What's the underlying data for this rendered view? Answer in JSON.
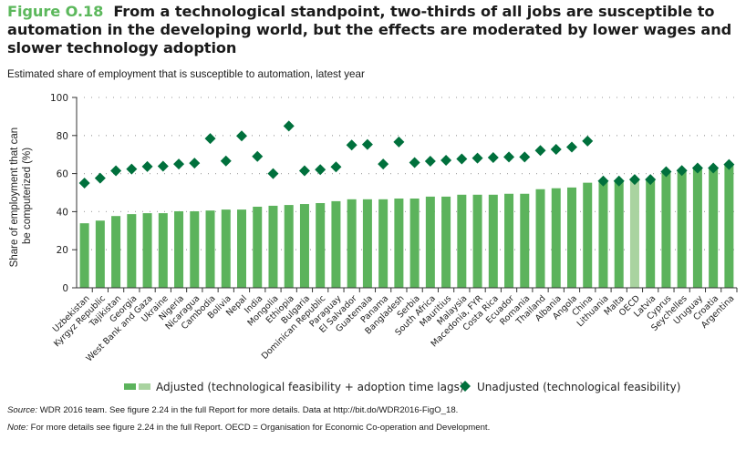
{
  "header": {
    "figure_label": "Figure O.18",
    "title": "From a technological standpoint, two-thirds of all jobs are susceptible to automation in the developing world, but the effects are moderated by lower wages and slower technology adoption",
    "subtitle": "Estimated share of employment that is susceptible to automation, latest year"
  },
  "footer": {
    "source_label": "Source:",
    "source_text": " WDR 2016 team. See figure 2.24 in the full Report for more details. Data at http://bit.do/WDR2016-FigO_18.",
    "note_label": "Note:",
    "note_text": " For more details see figure 2.24 in the full Report. OECD = Organisation for Economic Co-operation and Development."
  },
  "colors": {
    "bar": "#5cb35c",
    "bar_highlight": "#a9d3a0",
    "diamond": "#00703c",
    "figure_label": "#5cb85c"
  },
  "chart_data": {
    "type": "bar",
    "title": "Estimated share of employment that is susceptible to automation, latest year",
    "xlabel": "",
    "ylabel": "Share of employment that can be computerized (%)",
    "ylim": [
      0,
      100
    ],
    "yticks": [
      0,
      20,
      40,
      60,
      80,
      100
    ],
    "grid": "horizontal dotted",
    "legend_position": "bottom",
    "highlight_category": "OECD",
    "categories": [
      "Uzbekistan",
      "Kyrgyz Republic",
      "Tajikistan",
      "Georgia",
      "West Bank and Gaza",
      "Ukraine",
      "Nigeria",
      "Nicaragua",
      "Cambodia",
      "Bolivia",
      "Nepal",
      "India",
      "Mongolia",
      "Ethiopia",
      "Bulgaria",
      "Dominican Republic",
      "Paraguay",
      "El Salvador",
      "Guatemala",
      "Panama",
      "Bangladesh",
      "Serbia",
      "South Africa",
      "Mauritius",
      "Malaysia",
      "Macedonia, FYR",
      "Costa Rica",
      "Ecuador",
      "Romania",
      "Thailand",
      "Albania",
      "Angola",
      "China",
      "Lithuania",
      "Malta",
      "OECD",
      "Latvia",
      "Cyprus",
      "Seychelles",
      "Uruguay",
      "Croatia",
      "Argentina"
    ],
    "series": [
      {
        "name": "Adjusted (technological feasibility + adoption time lags)",
        "type": "bar",
        "values": [
          33.9,
          35.3,
          37.7,
          38.7,
          39.2,
          39.2,
          40.2,
          40.2,
          40.6,
          41.1,
          41.1,
          42.6,
          43.1,
          43.5,
          44.0,
          44.5,
          45.5,
          46.5,
          46.5,
          46.5,
          46.9,
          46.9,
          47.9,
          47.9,
          48.9,
          48.9,
          48.9,
          49.4,
          49.4,
          51.8,
          52.3,
          52.7,
          55.2,
          56.1,
          56.1,
          56.9,
          56.9,
          61.0,
          61.6,
          62.9,
          62.9,
          64.8
        ]
      },
      {
        "name": "Unadjusted (technological feasibility)",
        "type": "diamond",
        "values": [
          55.0,
          57.6,
          61.5,
          62.4,
          63.7,
          63.9,
          65.0,
          65.5,
          78.4,
          66.6,
          79.8,
          69.0,
          60.0,
          85.0,
          61.5,
          62.1,
          63.5,
          75.0,
          75.3,
          65.0,
          76.6,
          65.8,
          66.5,
          67.0,
          67.7,
          68.1,
          68.4,
          68.7,
          68.7,
          72.1,
          72.7,
          73.9,
          77.1,
          56.1,
          56.1,
          56.9,
          56.9,
          61.0,
          61.6,
          62.9,
          62.9,
          64.8
        ]
      }
    ]
  }
}
